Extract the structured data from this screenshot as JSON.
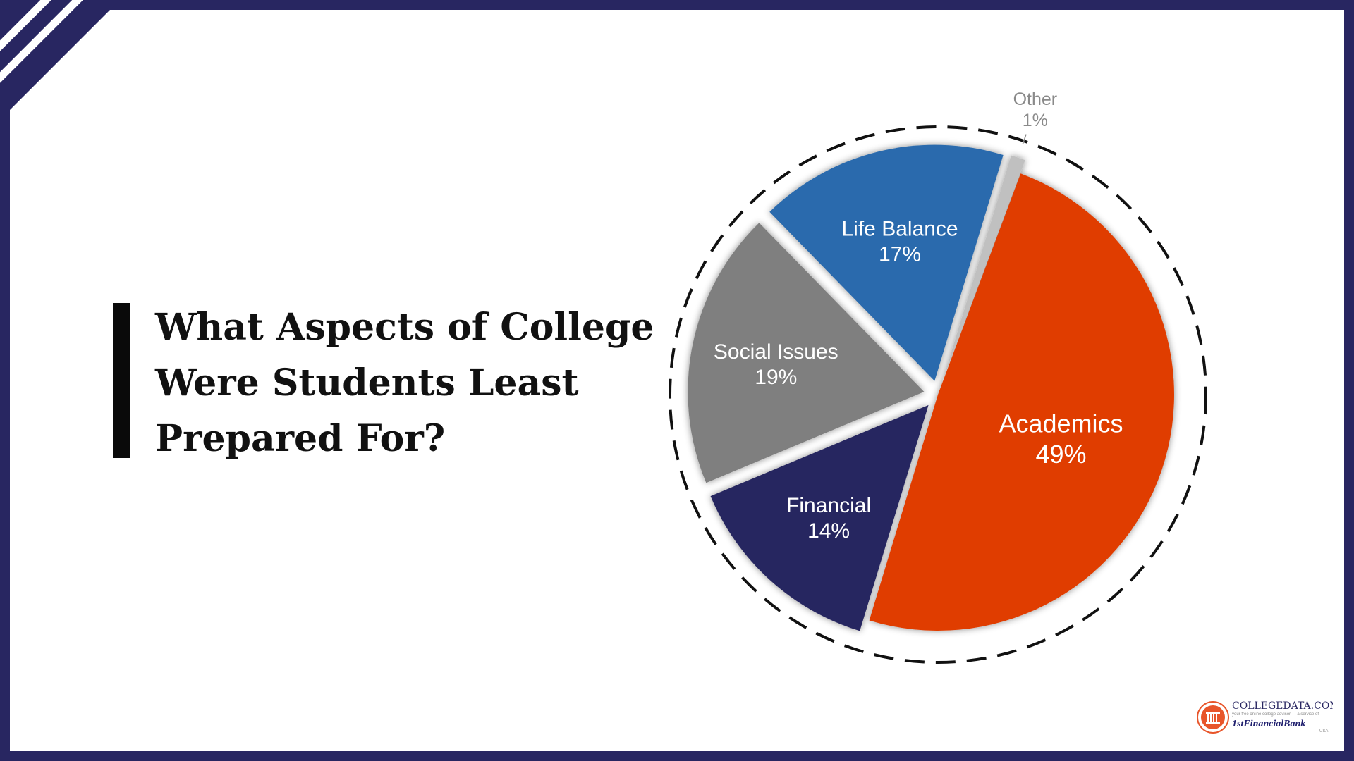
{
  "title_lines": [
    "What Aspects of College",
    "Were Students Least",
    "Prepared For?"
  ],
  "chart_data": {
    "type": "pie",
    "slices": [
      {
        "label": "Academics",
        "value": 49,
        "value_label": "49%",
        "color": "#e03e00"
      },
      {
        "label": "Financial",
        "value": 14,
        "value_label": "14%",
        "color": "#282661"
      },
      {
        "label": "Social Issues",
        "value": 19,
        "value_label": "19%",
        "color": "#7f7f7f"
      },
      {
        "label": "Life Balance",
        "value": 17,
        "value_label": "17%",
        "color": "#2a6bad"
      },
      {
        "label": "Other",
        "value": 1,
        "value_label": "1%",
        "color": "#c0c0c0"
      }
    ]
  },
  "logo": {
    "name": "COLLEGEDATA.COM",
    "tagline": "your free online college advisor — a service of",
    "bank": "1stFinancialBank",
    "bank_suffix": "USA"
  },
  "colors": {
    "frame": "#282661",
    "title_bar": "#0a0a0a",
    "logo_accent": "#e8552a"
  }
}
